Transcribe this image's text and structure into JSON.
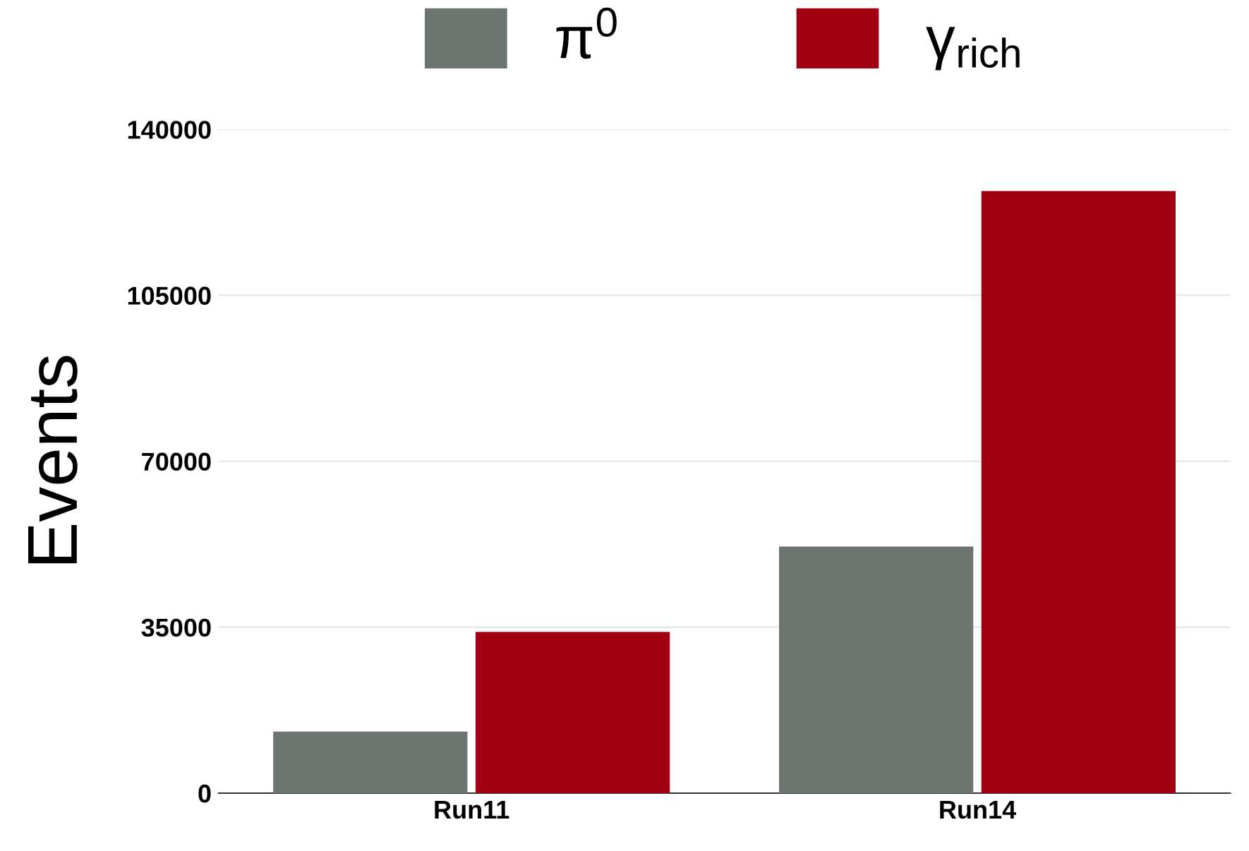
{
  "chart_data": {
    "type": "bar",
    "ylabel": "Events",
    "categories": [
      "Run11",
      "Run14"
    ],
    "series": [
      {
        "name": "π$^{0}$",
        "color": "#6d7570",
        "values": [
          13000,
          52000
        ]
      },
      {
        "name": "γ$_{rich}$",
        "color": "#a10012",
        "values": [
          34000,
          127000
        ]
      }
    ],
    "ylim": [
      0,
      140000
    ],
    "yticks": [
      0,
      35000,
      70000,
      105000,
      140000
    ],
    "grid": "y",
    "legend": "top"
  }
}
